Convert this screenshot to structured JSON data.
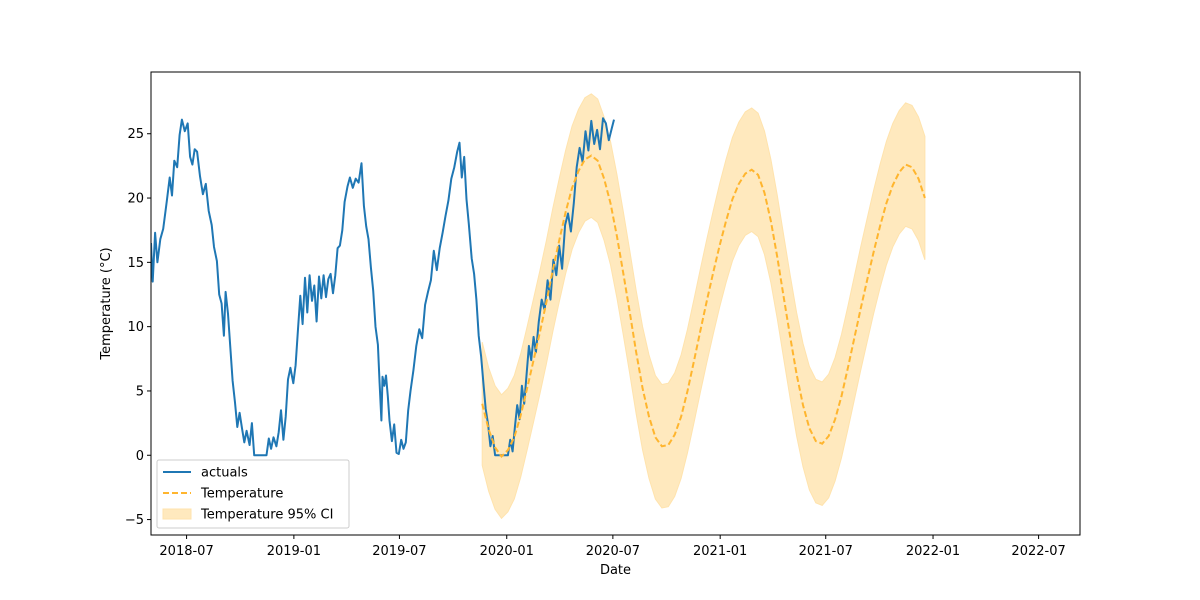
{
  "chart_data": {
    "type": "line",
    "xlabel": "Date",
    "ylabel": "Temperature (°C)",
    "x_axis": {
      "type": "date",
      "range": [
        "2018-05-01",
        "2022-09-10"
      ],
      "ticks": [
        "2018-07-01",
        "2019-01-01",
        "2019-07-01",
        "2020-01-01",
        "2020-07-01",
        "2021-01-01",
        "2021-07-01",
        "2022-01-01",
        "2022-07-01"
      ],
      "tick_labels": [
        "2018-07",
        "2019-01",
        "2019-07",
        "2020-01",
        "2020-07",
        "2021-01",
        "2021-07",
        "2022-01",
        "2022-07"
      ]
    },
    "y_axis": {
      "range": [
        -6.2,
        29.8
      ],
      "ticks": [
        -5,
        0,
        5,
        10,
        15,
        20,
        25
      ],
      "tick_labels": [
        "−5",
        "0",
        "5",
        "10",
        "15",
        "20",
        "25"
      ]
    },
    "grid": false,
    "legend": {
      "placement": "lower-left",
      "entries": [
        {
          "label": "actuals",
          "style": "solid-line",
          "color": "#1f77b4"
        },
        {
          "label": "Temperature",
          "style": "dashed-line",
          "color": "#ffb52e"
        },
        {
          "label": "Temperature 95% CI",
          "style": "filled-band",
          "color": "#ffe9be"
        }
      ]
    },
    "series": [
      {
        "name": "actuals",
        "kind": "line",
        "color": "#1f77b4",
        "points": [
          [
            "2018-05-01",
            16.5
          ],
          [
            "2018-05-04",
            13.5
          ],
          [
            "2018-05-08",
            17.3
          ],
          [
            "2018-05-12",
            15.0
          ],
          [
            "2018-05-17",
            16.8
          ],
          [
            "2018-05-22",
            17.6
          ],
          [
            "2018-05-28",
            19.7
          ],
          [
            "2018-06-02",
            21.6
          ],
          [
            "2018-06-06",
            20.2
          ],
          [
            "2018-06-10",
            22.9
          ],
          [
            "2018-06-15",
            22.4
          ],
          [
            "2018-06-19",
            24.9
          ],
          [
            "2018-06-23",
            26.1
          ],
          [
            "2018-06-28",
            25.2
          ],
          [
            "2018-07-03",
            25.8
          ],
          [
            "2018-07-07",
            23.2
          ],
          [
            "2018-07-11",
            22.6
          ],
          [
            "2018-07-15",
            23.8
          ],
          [
            "2018-07-19",
            23.6
          ],
          [
            "2018-07-24",
            21.7
          ],
          [
            "2018-07-29",
            20.3
          ],
          [
            "2018-08-03",
            21.1
          ],
          [
            "2018-08-08",
            19.0
          ],
          [
            "2018-08-13",
            17.9
          ],
          [
            "2018-08-17",
            16.2
          ],
          [
            "2018-08-22",
            15.1
          ],
          [
            "2018-08-26",
            12.5
          ],
          [
            "2018-08-30",
            11.8
          ],
          [
            "2018-09-03",
            9.3
          ],
          [
            "2018-09-06",
            12.7
          ],
          [
            "2018-09-10",
            11.0
          ],
          [
            "2018-09-14",
            8.4
          ],
          [
            "2018-09-18",
            5.8
          ],
          [
            "2018-09-22",
            4.1
          ],
          [
            "2018-09-26",
            2.2
          ],
          [
            "2018-09-30",
            3.3
          ],
          [
            "2018-10-04",
            2.1
          ],
          [
            "2018-10-08",
            1.0
          ],
          [
            "2018-10-12",
            1.9
          ],
          [
            "2018-10-17",
            0.8
          ],
          [
            "2018-10-21",
            2.5
          ],
          [
            "2018-10-25",
            0.0
          ],
          [
            "2018-11-15",
            0.0
          ],
          [
            "2018-11-19",
            1.3
          ],
          [
            "2018-11-23",
            0.5
          ],
          [
            "2018-11-27",
            1.4
          ],
          [
            "2018-12-02",
            0.7
          ],
          [
            "2018-12-06",
            1.8
          ],
          [
            "2018-12-10",
            3.5
          ],
          [
            "2018-12-14",
            1.2
          ],
          [
            "2018-12-18",
            3.0
          ],
          [
            "2018-12-22",
            5.9
          ],
          [
            "2018-12-26",
            6.8
          ],
          [
            "2018-12-31",
            5.6
          ],
          [
            "2019-01-04",
            7.0
          ],
          [
            "2019-01-08",
            9.8
          ],
          [
            "2019-01-12",
            12.4
          ],
          [
            "2019-01-16",
            10.2
          ],
          [
            "2019-01-20",
            13.8
          ],
          [
            "2019-01-24",
            11.1
          ],
          [
            "2019-01-28",
            14.0
          ],
          [
            "2019-02-01",
            12.0
          ],
          [
            "2019-02-05",
            13.2
          ],
          [
            "2019-02-09",
            10.4
          ],
          [
            "2019-02-13",
            13.9
          ],
          [
            "2019-02-17",
            12.2
          ],
          [
            "2019-02-21",
            14.0
          ],
          [
            "2019-02-25",
            12.3
          ],
          [
            "2019-03-01",
            13.7
          ],
          [
            "2019-03-05",
            14.1
          ],
          [
            "2019-03-09",
            12.6
          ],
          [
            "2019-03-13",
            14.0
          ],
          [
            "2019-03-17",
            16.1
          ],
          [
            "2019-03-21",
            16.3
          ],
          [
            "2019-03-25",
            17.5
          ],
          [
            "2019-03-29",
            19.7
          ],
          [
            "2019-04-03",
            20.9
          ],
          [
            "2019-04-07",
            21.6
          ],
          [
            "2019-04-12",
            20.8
          ],
          [
            "2019-04-17",
            21.5
          ],
          [
            "2019-04-22",
            21.2
          ],
          [
            "2019-04-27",
            22.7
          ],
          [
            "2019-05-01",
            19.4
          ],
          [
            "2019-05-05",
            17.8
          ],
          [
            "2019-05-09",
            16.8
          ],
          [
            "2019-05-13",
            14.6
          ],
          [
            "2019-05-17",
            12.8
          ],
          [
            "2019-05-21",
            10.0
          ],
          [
            "2019-05-25",
            8.6
          ],
          [
            "2019-05-28",
            5.6
          ],
          [
            "2019-05-31",
            2.7
          ],
          [
            "2019-06-02",
            6.1
          ],
          [
            "2019-06-05",
            5.4
          ],
          [
            "2019-06-08",
            6.2
          ],
          [
            "2019-06-11",
            4.6
          ],
          [
            "2019-06-14",
            2.7
          ],
          [
            "2019-06-18",
            1.1
          ],
          [
            "2019-06-22",
            2.4
          ],
          [
            "2019-06-26",
            0.2
          ],
          [
            "2019-06-30",
            0.1
          ],
          [
            "2019-07-04",
            1.2
          ],
          [
            "2019-07-08",
            0.5
          ],
          [
            "2019-07-12",
            1.0
          ],
          [
            "2019-07-16",
            3.5
          ],
          [
            "2019-07-20",
            5.0
          ],
          [
            "2019-07-25",
            6.6
          ],
          [
            "2019-07-30",
            8.5
          ],
          [
            "2019-08-04",
            9.8
          ],
          [
            "2019-08-09",
            9.1
          ],
          [
            "2019-08-14",
            11.7
          ],
          [
            "2019-08-19",
            12.7
          ],
          [
            "2019-08-24",
            13.6
          ],
          [
            "2019-08-29",
            15.9
          ],
          [
            "2019-09-03",
            14.4
          ],
          [
            "2019-09-08",
            16.1
          ],
          [
            "2019-09-13",
            17.3
          ],
          [
            "2019-09-18",
            18.6
          ],
          [
            "2019-09-23",
            19.8
          ],
          [
            "2019-09-28",
            21.5
          ],
          [
            "2019-10-03",
            22.4
          ],
          [
            "2019-10-08",
            23.6
          ],
          [
            "2019-10-12",
            24.3
          ],
          [
            "2019-10-16",
            21.6
          ],
          [
            "2019-10-20",
            23.2
          ],
          [
            "2019-10-24",
            19.9
          ],
          [
            "2019-10-28",
            18.0
          ],
          [
            "2019-11-02",
            15.3
          ],
          [
            "2019-11-06",
            14.1
          ],
          [
            "2019-11-10",
            12.1
          ],
          [
            "2019-11-14",
            9.3
          ],
          [
            "2019-11-18",
            7.7
          ],
          [
            "2019-11-22",
            5.6
          ],
          [
            "2019-11-26",
            3.6
          ],
          [
            "2019-11-30",
            2.4
          ],
          [
            "2019-12-04",
            0.7
          ],
          [
            "2019-12-08",
            1.5
          ],
          [
            "2019-12-12",
            0.0
          ],
          [
            "2020-01-03",
            0.0
          ],
          [
            "2020-01-07",
            1.2
          ],
          [
            "2020-01-11",
            0.3
          ],
          [
            "2020-01-15",
            2.2
          ],
          [
            "2020-01-19",
            3.9
          ],
          [
            "2020-01-23",
            2.8
          ],
          [
            "2020-01-27",
            5.4
          ],
          [
            "2020-01-31",
            4.0
          ],
          [
            "2020-02-04",
            6.3
          ],
          [
            "2020-02-08",
            8.5
          ],
          [
            "2020-02-12",
            7.4
          ],
          [
            "2020-02-16",
            9.2
          ],
          [
            "2020-02-20",
            8.0
          ],
          [
            "2020-02-25",
            10.4
          ],
          [
            "2020-03-01",
            12.1
          ],
          [
            "2020-03-06",
            11.3
          ],
          [
            "2020-03-11",
            13.6
          ],
          [
            "2020-03-16",
            12.1
          ],
          [
            "2020-03-21",
            15.2
          ],
          [
            "2020-03-26",
            14.0
          ],
          [
            "2020-03-31",
            16.3
          ],
          [
            "2020-04-05",
            14.5
          ],
          [
            "2020-04-10",
            17.9
          ],
          [
            "2020-04-15",
            18.8
          ],
          [
            "2020-04-20",
            17.4
          ],
          [
            "2020-04-25",
            19.6
          ],
          [
            "2020-04-30",
            22.4
          ],
          [
            "2020-05-05",
            23.9
          ],
          [
            "2020-05-10",
            22.8
          ],
          [
            "2020-05-15",
            25.2
          ],
          [
            "2020-05-20",
            23.7
          ],
          [
            "2020-05-25",
            26.0
          ],
          [
            "2020-05-30",
            24.2
          ],
          [
            "2020-06-04",
            25.3
          ],
          [
            "2020-06-09",
            23.8
          ],
          [
            "2020-06-14",
            26.2
          ],
          [
            "2020-06-19",
            25.8
          ],
          [
            "2020-06-24",
            24.5
          ],
          [
            "2020-06-29",
            25.4
          ],
          [
            "2020-07-03",
            26.1
          ]
        ]
      },
      {
        "name": "Temperature",
        "kind": "dashed-line",
        "color": "#ffb52e",
        "points": [
          [
            "2019-11-20",
            4.0
          ],
          [
            "2019-12-01",
            2.0
          ],
          [
            "2019-12-12",
            0.6
          ],
          [
            "2019-12-23",
            -0.1
          ],
          [
            "2020-01-03",
            0.4
          ],
          [
            "2020-01-14",
            1.4
          ],
          [
            "2020-01-25",
            3.1
          ],
          [
            "2020-02-05",
            5.2
          ],
          [
            "2020-02-16",
            7.4
          ],
          [
            "2020-02-27",
            9.6
          ],
          [
            "2020-03-09",
            11.9
          ],
          [
            "2020-03-20",
            14.4
          ],
          [
            "2020-03-31",
            16.7
          ],
          [
            "2020-04-11",
            18.9
          ],
          [
            "2020-04-22",
            20.8
          ],
          [
            "2020-05-03",
            22.1
          ],
          [
            "2020-05-14",
            23.0
          ],
          [
            "2020-05-25",
            23.3
          ],
          [
            "2020-06-05",
            22.9
          ],
          [
            "2020-06-16",
            21.5
          ],
          [
            "2020-06-27",
            19.6
          ],
          [
            "2020-07-08",
            17.0
          ],
          [
            "2020-07-19",
            14.1
          ],
          [
            "2020-07-30",
            11.1
          ],
          [
            "2020-08-10",
            8.0
          ],
          [
            "2020-08-21",
            5.2
          ],
          [
            "2020-09-01",
            3.0
          ],
          [
            "2020-09-12",
            1.4
          ],
          [
            "2020-09-23",
            0.7
          ],
          [
            "2020-10-04",
            0.8
          ],
          [
            "2020-10-15",
            1.6
          ],
          [
            "2020-10-26",
            3.0
          ],
          [
            "2020-11-06",
            5.0
          ],
          [
            "2020-11-17",
            7.3
          ],
          [
            "2020-11-28",
            9.7
          ],
          [
            "2020-12-09",
            12.0
          ],
          [
            "2020-12-20",
            14.2
          ],
          [
            "2020-12-31",
            16.3
          ],
          [
            "2021-01-11",
            18.2
          ],
          [
            "2021-01-22",
            19.9
          ],
          [
            "2021-02-02",
            21.1
          ],
          [
            "2021-02-13",
            21.9
          ],
          [
            "2021-02-24",
            22.2
          ],
          [
            "2021-03-07",
            21.8
          ],
          [
            "2021-03-18",
            20.4
          ],
          [
            "2021-03-29",
            18.2
          ],
          [
            "2021-04-09",
            15.4
          ],
          [
            "2021-04-20",
            12.3
          ],
          [
            "2021-05-01",
            9.2
          ],
          [
            "2021-05-12",
            6.3
          ],
          [
            "2021-05-23",
            3.9
          ],
          [
            "2021-06-03",
            2.1
          ],
          [
            "2021-06-14",
            1.1
          ],
          [
            "2021-06-25",
            0.9
          ],
          [
            "2021-07-06",
            1.5
          ],
          [
            "2021-07-17",
            2.8
          ],
          [
            "2021-07-28",
            4.6
          ],
          [
            "2021-08-08",
            6.8
          ],
          [
            "2021-08-19",
            9.1
          ],
          [
            "2021-08-30",
            11.4
          ],
          [
            "2021-09-10",
            13.6
          ],
          [
            "2021-09-21",
            15.8
          ],
          [
            "2021-10-02",
            17.8
          ],
          [
            "2021-10-13",
            19.6
          ],
          [
            "2021-10-24",
            21.0
          ],
          [
            "2021-11-04",
            22.0
          ],
          [
            "2021-11-15",
            22.6
          ],
          [
            "2021-11-26",
            22.4
          ],
          [
            "2021-12-07",
            21.5
          ],
          [
            "2021-12-18",
            20.0
          ]
        ]
      }
    ],
    "confidence_band": {
      "name": "Temperature 95% CI",
      "color": "#ffe9be",
      "half_width": 4.8
    }
  }
}
